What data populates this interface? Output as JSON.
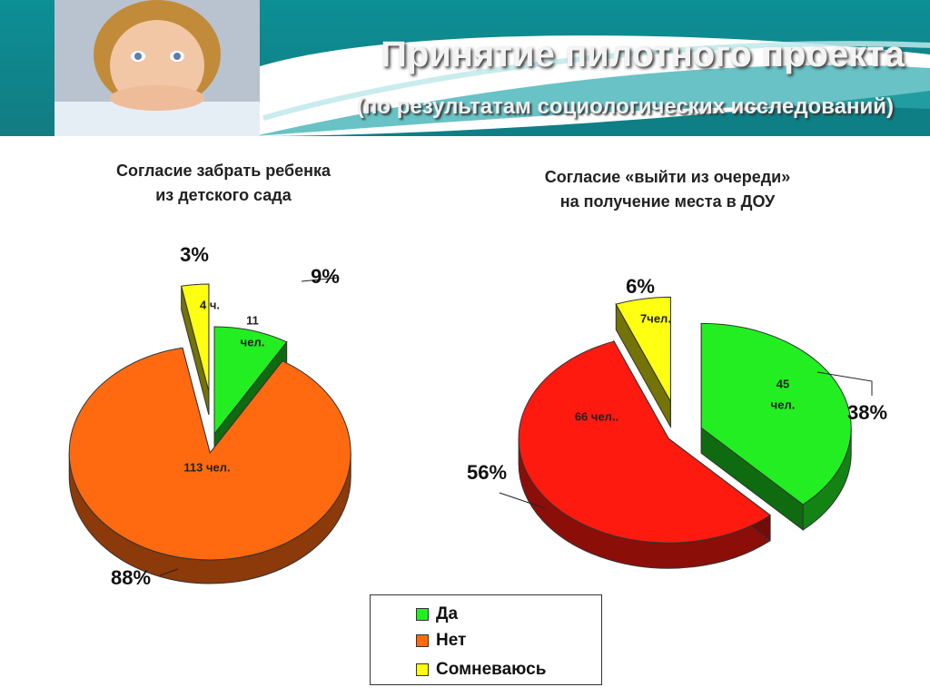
{
  "slide": {
    "title": "Принятие пилотного проекта",
    "subtitle": "(по результатам социологических исследований)"
  },
  "legend": {
    "items": [
      {
        "label": "Да",
        "color": "#22ee22"
      },
      {
        "label": "Нет",
        "color": "#ff6a10"
      },
      {
        "label": "Сомневаюсь",
        "color": "#ffff11"
      }
    ]
  },
  "chart_data": [
    {
      "type": "pie",
      "title_line1": "Согласие забрать ребенка",
      "title_line2": "из детского сада",
      "categories": [
        "Да",
        "Нет",
        "Сомневаюсь"
      ],
      "values": [
        11,
        113,
        4
      ],
      "percent_labels": [
        "9%",
        "88%",
        "3%"
      ],
      "data_labels": [
        "11 чел.",
        "113 чел.",
        "4 ч."
      ],
      "colors": [
        "#22ee22",
        "#ff6a10",
        "#ffff11"
      ]
    },
    {
      "type": "pie",
      "title_line1": "Согласие «выйти из очереди»",
      "title_line2": "на получение места в ДОУ",
      "categories": [
        "Да",
        "Нет",
        "Сомневаюсь"
      ],
      "values": [
        45,
        66,
        7
      ],
      "percent_labels": [
        "38%",
        "56%",
        "6%"
      ],
      "data_labels": [
        "45 чел.",
        "66 чел..",
        "7чел."
      ],
      "colors": [
        "#22ee22",
        "#ff1a10",
        "#ffff11"
      ]
    }
  ]
}
